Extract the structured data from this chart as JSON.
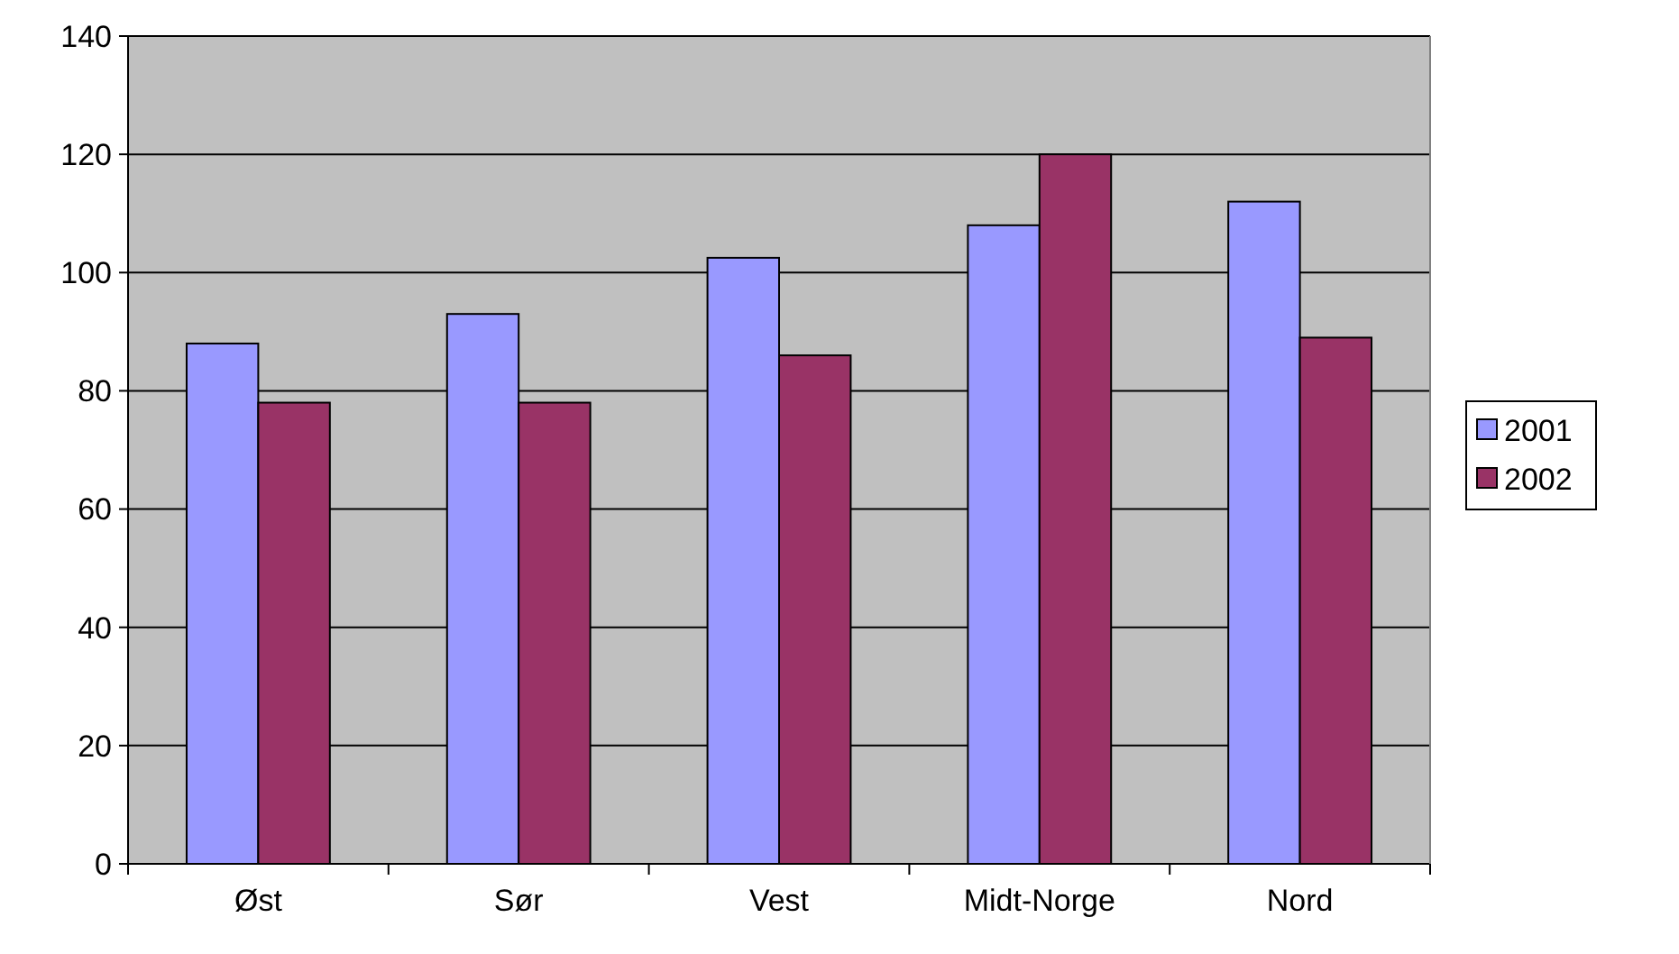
{
  "chart_data": {
    "type": "bar",
    "categories": [
      "Øst",
      "Sør",
      "Vest",
      "Midt-Norge",
      "Nord"
    ],
    "series": [
      {
        "name": "2001",
        "color": "#9999ff",
        "values": [
          88,
          93,
          102.5,
          108,
          112
        ]
      },
      {
        "name": "2002",
        "color": "#993366",
        "values": [
          78,
          78,
          86,
          120,
          89
        ]
      }
    ],
    "ylim": [
      0,
      140
    ],
    "yticks": [
      0,
      20,
      40,
      60,
      80,
      100,
      120,
      140
    ],
    "grid": "y",
    "legend": "right"
  }
}
